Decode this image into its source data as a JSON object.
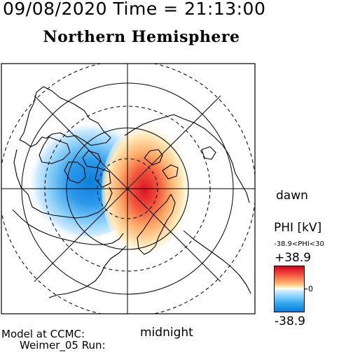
{
  "header": {
    "date": "09/08/2020",
    "time_label": "Time =",
    "time": "21:13:00",
    "title": "Northern Hemisphere"
  },
  "labels": {
    "dawn": "dawn",
    "midnight": "midnight",
    "model_line1": "Model at CCMC:",
    "model_line2": "Weimer_05 Run:"
  },
  "colorbar": {
    "title": "PHI [kV]",
    "range": "-38.9<PHI<30",
    "max": "+38.9",
    "zero": "0",
    "min": "-38.9",
    "colors": {
      "max": "#d8001e",
      "mid": "#ffffff",
      "min": "#0a7cd8"
    }
  },
  "map": {
    "projection": "polar stereographic, north pole at center",
    "grid": "latitude circles every 10 degrees, meridians every 45 degrees",
    "potential_cells": [
      {
        "sign": "negative",
        "side": "dusk"
      },
      {
        "sign": "positive",
        "side": "dawn"
      }
    ]
  }
}
